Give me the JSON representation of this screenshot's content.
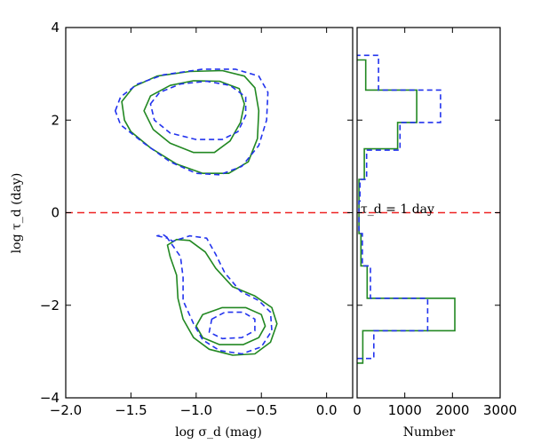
{
  "chart_data": [
    {
      "type": "contour",
      "panel": "main",
      "xlabel": "log σ_d (mag)",
      "ylabel": "log τ_d (day)",
      "xlim": [
        -2.0,
        0.2
      ],
      "ylim": [
        -4,
        4
      ],
      "xticks": [
        -2.0,
        -1.5,
        -1.0,
        -0.5,
        0.0
      ],
      "xtick_labels": [
        "−2.0",
        "−1.5",
        "−1.0",
        "−0.5",
        "0.0"
      ],
      "yticks": [
        -4,
        -2,
        0,
        2,
        4
      ],
      "ytick_labels": [
        "−4",
        "−2",
        "0",
        "2",
        "4"
      ],
      "reference_line": {
        "y": 0,
        "style": "dashed",
        "color": "#ee2222",
        "label": "τ_d = 1 day"
      },
      "series": [
        {
          "name": "green-contours",
          "color": "#228822",
          "style": "solid",
          "contours": [
            [
              [
                -1.55,
                2.0
              ],
              [
                -1.57,
                2.4
              ],
              [
                -1.48,
                2.72
              ],
              [
                -1.3,
                2.95
              ],
              [
                -1.05,
                3.05
              ],
              [
                -0.8,
                3.07
              ],
              [
                -0.63,
                2.95
              ],
              [
                -0.55,
                2.7
              ],
              [
                -0.52,
                2.2
              ],
              [
                -0.53,
                1.6
              ],
              [
                -0.6,
                1.1
              ],
              [
                -0.75,
                0.85
              ],
              [
                -0.95,
                0.85
              ],
              [
                -1.15,
                1.05
              ],
              [
                -1.35,
                1.4
              ],
              [
                -1.5,
                1.75
              ],
              [
                -1.55,
                2.0
              ]
            ],
            [
              [
                -1.4,
                2.2
              ],
              [
                -1.35,
                2.52
              ],
              [
                -1.2,
                2.75
              ],
              [
                -1.02,
                2.85
              ],
              [
                -0.82,
                2.84
              ],
              [
                -0.67,
                2.68
              ],
              [
                -0.63,
                2.35
              ],
              [
                -0.66,
                1.95
              ],
              [
                -0.74,
                1.55
              ],
              [
                -0.86,
                1.3
              ],
              [
                -1.02,
                1.3
              ],
              [
                -1.2,
                1.5
              ],
              [
                -1.33,
                1.8
              ],
              [
                -1.4,
                2.2
              ]
            ],
            [
              [
                -1.22,
                -0.7
              ],
              [
                -1.2,
                -0.95
              ],
              [
                -1.15,
                -1.35
              ],
              [
                -1.14,
                -1.85
              ],
              [
                -1.1,
                -2.3
              ],
              [
                -1.02,
                -2.7
              ],
              [
                -0.9,
                -2.95
              ],
              [
                -0.72,
                -3.08
              ],
              [
                -0.55,
                -3.05
              ],
              [
                -0.43,
                -2.8
              ],
              [
                -0.38,
                -2.4
              ],
              [
                -0.42,
                -2.05
              ],
              [
                -0.55,
                -1.8
              ],
              [
                -0.72,
                -1.6
              ],
              [
                -0.85,
                -1.2
              ],
              [
                -0.93,
                -0.85
              ],
              [
                -1.05,
                -0.6
              ],
              [
                -1.15,
                -0.58
              ],
              [
                -1.22,
                -0.7
              ]
            ],
            [
              [
                -1.0,
                -2.45
              ],
              [
                -0.95,
                -2.2
              ],
              [
                -0.8,
                -2.05
              ],
              [
                -0.62,
                -2.05
              ],
              [
                -0.5,
                -2.2
              ],
              [
                -0.47,
                -2.45
              ],
              [
                -0.52,
                -2.7
              ],
              [
                -0.64,
                -2.85
              ],
              [
                -0.82,
                -2.85
              ],
              [
                -0.95,
                -2.7
              ],
              [
                -1.0,
                -2.45
              ]
            ]
          ]
        },
        {
          "name": "blue-contours",
          "color": "#2233ee",
          "style": "dashed",
          "contours": [
            [
              [
                -1.62,
                2.2
              ],
              [
                -1.58,
                2.5
              ],
              [
                -1.45,
                2.78
              ],
              [
                -1.25,
                2.98
              ],
              [
                -0.95,
                3.1
              ],
              [
                -0.7,
                3.1
              ],
              [
                -0.52,
                2.95
              ],
              [
                -0.45,
                2.6
              ],
              [
                -0.46,
                2.0
              ],
              [
                -0.52,
                1.45
              ],
              [
                -0.65,
                1.0
              ],
              [
                -0.82,
                0.82
              ],
              [
                -1.0,
                0.85
              ],
              [
                -1.2,
                1.1
              ],
              [
                -1.4,
                1.5
              ],
              [
                -1.58,
                1.9
              ],
              [
                -1.62,
                2.2
              ]
            ],
            [
              [
                -1.35,
                2.35
              ],
              [
                -1.28,
                2.6
              ],
              [
                -1.12,
                2.78
              ],
              [
                -0.92,
                2.84
              ],
              [
                -0.74,
                2.75
              ],
              [
                -0.62,
                2.5
              ],
              [
                -0.62,
                2.1
              ],
              [
                -0.68,
                1.75
              ],
              [
                -0.8,
                1.58
              ],
              [
                -1.0,
                1.58
              ],
              [
                -1.2,
                1.72
              ],
              [
                -1.32,
                2.0
              ],
              [
                -1.35,
                2.35
              ]
            ],
            [
              [
                -1.3,
                -0.5
              ],
              [
                -1.22,
                -0.55
              ],
              [
                -1.12,
                -0.95
              ],
              [
                -1.1,
                -1.4
              ],
              [
                -1.1,
                -1.9
              ],
              [
                -1.02,
                -2.4
              ],
              [
                -0.95,
                -2.75
              ],
              [
                -0.82,
                -2.98
              ],
              [
                -0.65,
                -3.05
              ],
              [
                -0.5,
                -2.9
              ],
              [
                -0.42,
                -2.55
              ],
              [
                -0.43,
                -2.15
              ],
              [
                -0.52,
                -1.9
              ],
              [
                -0.66,
                -1.7
              ],
              [
                -0.78,
                -1.3
              ],
              [
                -0.85,
                -0.9
              ],
              [
                -0.92,
                -0.55
              ],
              [
                -1.05,
                -0.5
              ],
              [
                -1.18,
                -0.62
              ],
              [
                -1.25,
                -0.48
              ],
              [
                -1.3,
                -0.5
              ]
            ],
            [
              [
                -0.88,
                -2.3
              ],
              [
                -0.78,
                -2.15
              ],
              [
                -0.64,
                -2.15
              ],
              [
                -0.55,
                -2.3
              ],
              [
                -0.55,
                -2.55
              ],
              [
                -0.65,
                -2.7
              ],
              [
                -0.8,
                -2.72
              ],
              [
                -0.9,
                -2.58
              ],
              [
                -0.88,
                -2.3
              ]
            ]
          ]
        }
      ]
    },
    {
      "type": "histogram",
      "panel": "side",
      "orientation": "horizontal",
      "xlabel": "Number",
      "xlim": [
        0,
        3000
      ],
      "ylim": [
        -4,
        4
      ],
      "xticks": [
        0,
        1000,
        2000,
        3000
      ],
      "xtick_labels": [
        "0",
        "1000",
        "2000",
        "3000"
      ],
      "series": [
        {
          "name": "green-hist",
          "color": "#228822",
          "style": "solid",
          "bins": [
            {
              "y0": -3.25,
              "y1": -2.55,
              "count": 120
            },
            {
              "y0": -2.55,
              "y1": -1.85,
              "count": 2050
            },
            {
              "y0": -1.85,
              "y1": -1.15,
              "count": 210
            },
            {
              "y0": -1.15,
              "y1": -0.45,
              "count": 80
            },
            {
              "y0": -0.45,
              "y1": 0.25,
              "count": 40
            },
            {
              "y0": 0.25,
              "y1": 0.72,
              "count": 40
            },
            {
              "y0": 0.72,
              "y1": 1.38,
              "count": 150
            },
            {
              "y0": 1.38,
              "y1": 1.95,
              "count": 850
            },
            {
              "y0": 1.95,
              "y1": 2.65,
              "count": 1250
            },
            {
              "y0": 2.65,
              "y1": 3.3,
              "count": 180
            }
          ]
        },
        {
          "name": "blue-hist",
          "color": "#2233ee",
          "style": "dashed",
          "bins": [
            {
              "y0": -3.15,
              "y1": -2.55,
              "count": 350
            },
            {
              "y0": -2.55,
              "y1": -1.85,
              "count": 1480
            },
            {
              "y0": -1.85,
              "y1": -1.15,
              "count": 280
            },
            {
              "y0": -1.15,
              "y1": -0.45,
              "count": 110
            },
            {
              "y0": -0.45,
              "y1": 0.25,
              "count": 40
            },
            {
              "y0": 0.25,
              "y1": 0.72,
              "count": 60
            },
            {
              "y0": 0.72,
              "y1": 1.35,
              "count": 200
            },
            {
              "y0": 1.35,
              "y1": 1.95,
              "count": 900
            },
            {
              "y0": 1.95,
              "y1": 2.65,
              "count": 1750
            },
            {
              "y0": 2.65,
              "y1": 3.4,
              "count": 450
            }
          ]
        }
      ]
    }
  ],
  "labels": {
    "y_axis": "log τ_d (day)",
    "x_axis_main": "log σ_d (mag)",
    "x_axis_side": "Number",
    "annotation": "τ_d = 1 day"
  }
}
